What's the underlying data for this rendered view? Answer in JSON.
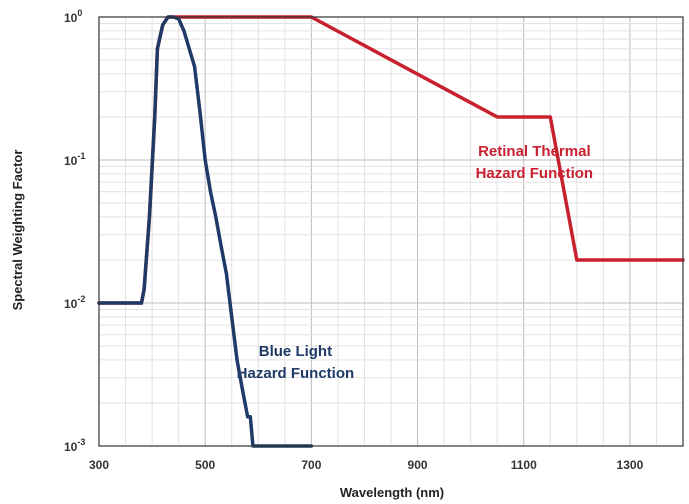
{
  "chart_data": {
    "type": "line",
    "xlabel": "Wavelength (nm)",
    "ylabel": "Spectral Weighting Factor",
    "xlim": [
      300,
      1400
    ],
    "ylim": [
      0.001,
      1
    ],
    "y_scale": "log",
    "grid": true,
    "x_ticks": [
      "300",
      "500",
      "700",
      "900",
      "1100",
      "1300"
    ],
    "y_ticks": [
      {
        "base": "10",
        "exp": "-3"
      },
      {
        "base": "10",
        "exp": "-2"
      },
      {
        "base": "10",
        "exp": "-1"
      },
      {
        "base": "10",
        "exp": "0"
      }
    ],
    "series": [
      {
        "name": "Retinal Thermal Hazard Function",
        "color": "#c8202f",
        "x": [
          300,
          380,
          385,
          395,
          405,
          410,
          420,
          430,
          440,
          700,
          1050,
          1150,
          1200,
          1400
        ],
        "y": [
          0.01,
          0.01,
          0.0125,
          0.04,
          0.2,
          0.6,
          0.88,
          1,
          1,
          1,
          0.2,
          0.2,
          0.02,
          0.02
        ]
      },
      {
        "name": "Blue Light Hazard Function",
        "color": "#1f3a66",
        "x": [
          300,
          380,
          385,
          395,
          405,
          410,
          420,
          430,
          440,
          450,
          460,
          470,
          480,
          490,
          500,
          510,
          520,
          530,
          540,
          550,
          560,
          570,
          580,
          585,
          590,
          600,
          700
        ],
        "y": [
          0.01,
          0.01,
          0.0125,
          0.04,
          0.2,
          0.6,
          0.88,
          1,
          1,
          0.97,
          0.8,
          0.6,
          0.45,
          0.22,
          0.1,
          0.06,
          0.04,
          0.025,
          0.016,
          0.008,
          0.004,
          0.0025,
          0.0016,
          0.0016,
          0.001,
          0.001,
          0.001
        ]
      }
    ],
    "annotations": [
      {
        "lines": [
          "Retinal Thermal",
          "Hazard Function"
        ],
        "color": "#c8202f",
        "x": 1120,
        "y": 0.1
      },
      {
        "lines": [
          "Blue Light",
          "Hazard Function"
        ],
        "color": "#1f3a66",
        "x": 670,
        "y": 0.004
      }
    ]
  }
}
